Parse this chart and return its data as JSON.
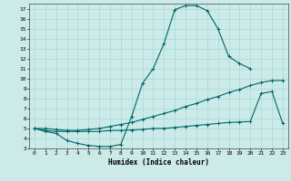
{
  "xlabel": "Humidex (Indice chaleur)",
  "bg_color": "#cceae8",
  "grid_color": "#aaddda",
  "line_color": "#006666",
  "xlim": [
    -0.5,
    23.5
  ],
  "ylim": [
    3,
    17.5
  ],
  "xticks": [
    0,
    1,
    2,
    3,
    4,
    5,
    6,
    7,
    8,
    9,
    10,
    11,
    12,
    13,
    14,
    15,
    16,
    17,
    18,
    19,
    20,
    21,
    22,
    23
  ],
  "yticks": [
    3,
    4,
    5,
    6,
    7,
    8,
    9,
    10,
    11,
    12,
    13,
    14,
    15,
    16,
    17
  ],
  "line1_x": [
    0,
    1,
    2,
    3,
    4,
    5,
    6,
    7,
    8,
    9,
    10,
    11,
    12,
    13,
    14,
    15,
    16,
    17,
    18,
    19,
    20
  ],
  "line1_y": [
    5.0,
    4.7,
    4.5,
    3.8,
    3.5,
    3.3,
    3.2,
    3.2,
    3.4,
    6.2,
    9.5,
    11.0,
    13.5,
    16.9,
    17.3,
    17.3,
    16.8,
    15.0,
    12.2,
    11.5,
    11.0
  ],
  "line2_x": [
    0,
    1,
    2,
    3,
    4,
    5,
    6,
    7,
    8,
    9,
    10,
    11,
    12,
    13,
    14,
    15,
    16,
    17,
    18,
    19,
    20,
    21,
    22,
    23
  ],
  "line2_y": [
    5.0,
    5.0,
    4.9,
    4.8,
    4.8,
    4.9,
    5.0,
    5.2,
    5.4,
    5.6,
    5.9,
    6.2,
    6.5,
    6.8,
    7.2,
    7.5,
    7.9,
    8.2,
    8.6,
    8.9,
    9.3,
    9.6,
    9.8,
    9.8
  ],
  "line3_x": [
    0,
    1,
    2,
    3,
    4,
    5,
    6,
    7,
    8,
    9,
    10,
    11,
    12,
    13,
    14,
    15,
    16,
    17,
    18,
    19,
    20,
    21,
    22,
    23
  ],
  "line3_y": [
    5.0,
    4.8,
    4.7,
    4.7,
    4.7,
    4.7,
    4.7,
    4.8,
    4.8,
    4.85,
    4.9,
    5.0,
    5.0,
    5.1,
    5.2,
    5.3,
    5.4,
    5.5,
    5.6,
    5.65,
    5.7,
    8.5,
    8.7,
    5.5
  ]
}
